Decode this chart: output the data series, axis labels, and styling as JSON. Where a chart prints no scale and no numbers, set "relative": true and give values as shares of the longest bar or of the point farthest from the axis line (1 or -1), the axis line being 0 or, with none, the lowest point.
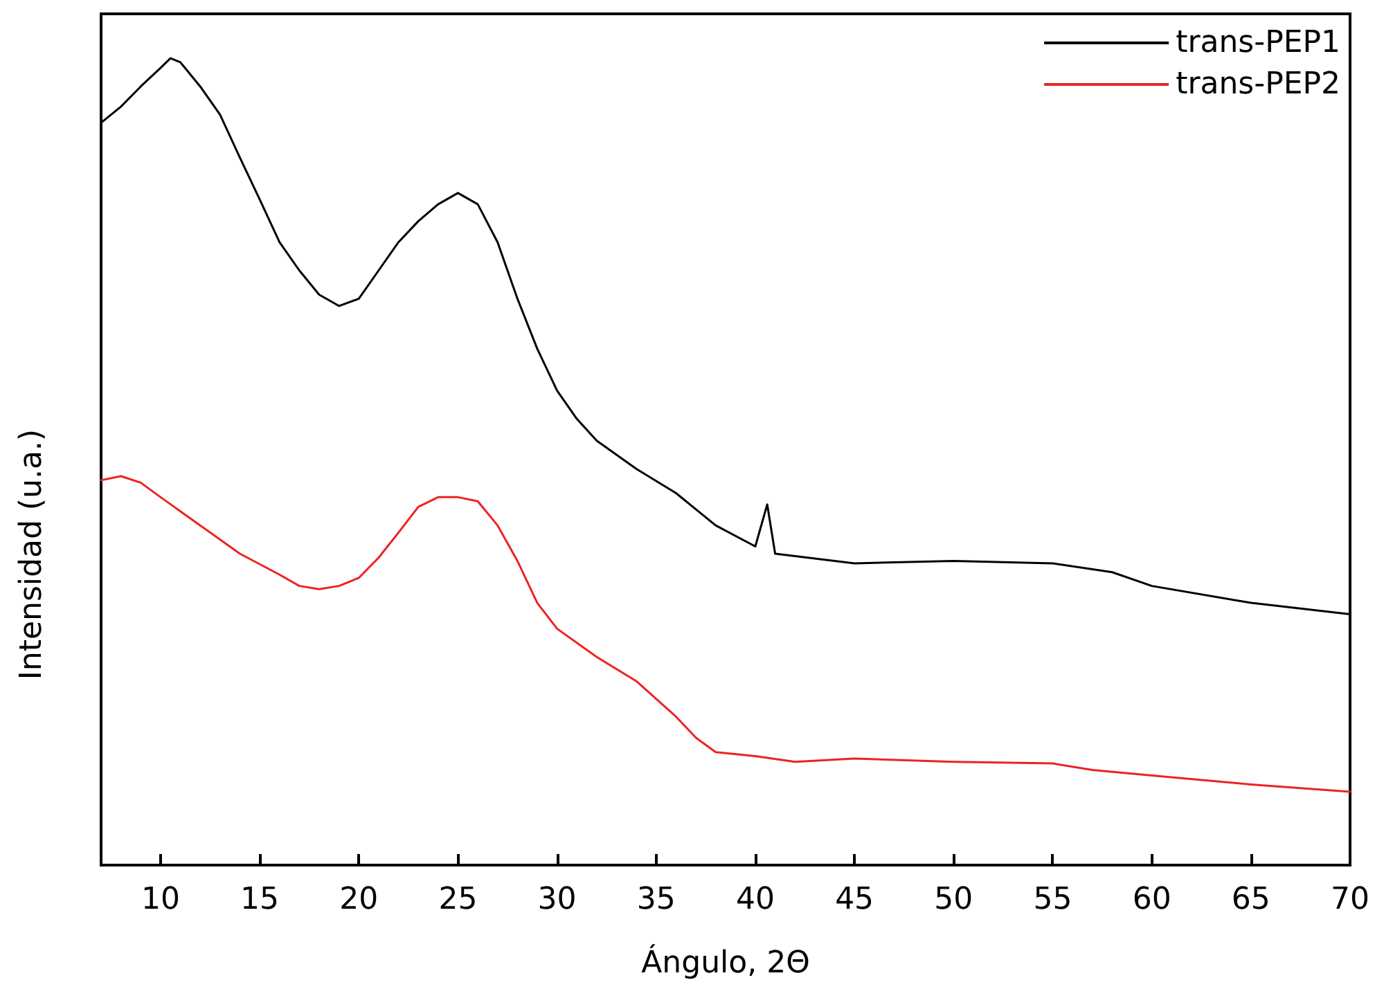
{
  "chart_data": {
    "type": "line",
    "xlabel": "Ángulo, 2Θ",
    "ylabel": "Intensidad (u.a.)",
    "relative": true,
    "xlim": [
      7,
      70
    ],
    "xticks": [
      10,
      15,
      20,
      25,
      30,
      35,
      40,
      45,
      50,
      55,
      60,
      65,
      70
    ],
    "legend": "top right",
    "grid": false,
    "marker": "none",
    "line_style": "solid",
    "series": [
      {
        "name": "trans-PEP1",
        "color": "#000000",
        "x": [
          7,
          8,
          9,
          10,
          10.5,
          11,
          12,
          13,
          14,
          15,
          16,
          17,
          18,
          19,
          20,
          21,
          22,
          23,
          24,
          25,
          26,
          27,
          28,
          29,
          30,
          31,
          32,
          34,
          36,
          38,
          40,
          40.6,
          41,
          45,
          50,
          55,
          58,
          60,
          65,
          70
        ],
        "values": [
          0.92,
          0.94,
          0.965,
          0.988,
          1,
          0.995,
          0.965,
          0.93,
          0.877,
          0.825,
          0.772,
          0.737,
          0.707,
          0.693,
          0.702,
          0.737,
          0.772,
          0.798,
          0.819,
          0.833,
          0.819,
          0.772,
          0.702,
          0.64,
          0.588,
          0.553,
          0.526,
          0.491,
          0.461,
          0.421,
          0.395,
          0.447,
          0.386,
          0.374,
          0.377,
          0.374,
          0.363,
          0.346,
          0.325,
          0.311
        ]
      },
      {
        "name": "trans-PEP2",
        "color": "#ee2222",
        "x": [
          7,
          8,
          9,
          10,
          12,
          14,
          16,
          17,
          18,
          19,
          20,
          21,
          22,
          23,
          24,
          25,
          26,
          27,
          28,
          29,
          30,
          32,
          34,
          36,
          37,
          38,
          40,
          42,
          45,
          50,
          55,
          57,
          60,
          65,
          70
        ],
        "values": [
          0.477,
          0.482,
          0.474,
          0.456,
          0.421,
          0.386,
          0.36,
          0.346,
          0.342,
          0.346,
          0.356,
          0.381,
          0.412,
          0.444,
          0.456,
          0.456,
          0.451,
          0.421,
          0.377,
          0.325,
          0.293,
          0.258,
          0.228,
          0.184,
          0.158,
          0.14,
          0.135,
          0.128,
          0.132,
          0.128,
          0.126,
          0.118,
          0.111,
          0.1,
          0.091
        ]
      }
    ]
  }
}
